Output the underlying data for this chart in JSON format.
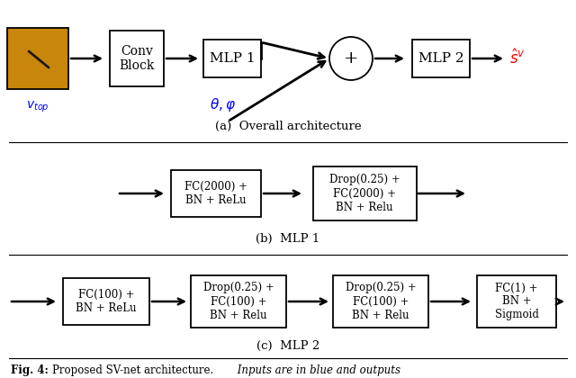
{
  "bg_color": "#ffffff",
  "fig_width": 6.4,
  "fig_height": 4.2,
  "dpi": 100,
  "panel_a_label": "(a)  Overall architecture",
  "panel_b_label": "(b)  MLP 1",
  "panel_c_label": "(c)  MLP 2",
  "v_top_label": "$v_{top}$",
  "theta_phi_label": "$\\theta, \\varphi$",
  "s_hat_label": "$\\hat{s}^v$",
  "box_color": "#ffffff",
  "box_edge_color": "#000000",
  "text_color": "#000000",
  "blue_color": "#0000ff",
  "red_color": "#ff0000",
  "img_color": "#c8860a"
}
